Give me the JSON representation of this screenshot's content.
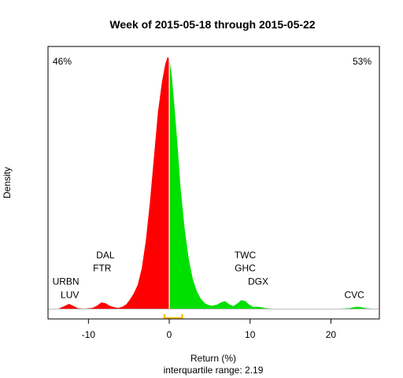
{
  "chart_data": {
    "type": "area",
    "title": "Week of 2015-05-18 through 2015-05-22",
    "xlabel": "Return (%)",
    "ylabel": "Density",
    "subtitle": "interquartile range: 2.19",
    "xlim": [
      -15,
      26
    ],
    "ylim": [
      0,
      1
    ],
    "x_ticks": [
      -10,
      0,
      10,
      20
    ],
    "grid": false,
    "negative_share": "46%",
    "positive_share": "53%",
    "negative_color": "#ff0000",
    "positive_color": "#00e000",
    "iqr_bracket": [
      -0.6,
      1.6
    ],
    "iqr_color": "#ffc000",
    "series": [
      {
        "x": [
          -13.7,
          -13.0,
          -12.4,
          -11.8,
          -11.3,
          -10.5,
          -9.5,
          -8.9,
          -8.4,
          -7.9,
          -7.4,
          -6.8,
          -6.3,
          -5.8,
          -5.3,
          -4.9,
          -4.4,
          -3.9,
          -3.4,
          -2.9,
          -2.4,
          -1.9,
          -1.4,
          -0.9,
          -0.5,
          -0.2,
          0.0,
          0.3,
          0.6,
          1.0,
          1.4,
          1.9,
          2.4,
          2.9,
          3.4,
          3.9,
          4.4,
          4.9,
          5.4,
          5.9,
          6.4,
          6.9,
          7.4,
          7.9,
          8.4,
          8.9,
          9.4,
          9.9,
          10.4,
          10.9,
          11.4,
          11.9,
          13.0,
          15.0,
          18.0,
          21.0,
          22.3,
          22.8,
          23.3,
          23.8,
          24.3,
          25.2
        ],
        "y": [
          0.0,
          0.01,
          0.019,
          0.01,
          0.002,
          0.0,
          0.003,
          0.013,
          0.025,
          0.022,
          0.012,
          0.006,
          0.003,
          0.008,
          0.018,
          0.035,
          0.06,
          0.095,
          0.16,
          0.27,
          0.42,
          0.6,
          0.78,
          0.9,
          0.97,
          1.0,
          0.99,
          0.93,
          0.82,
          0.66,
          0.48,
          0.32,
          0.2,
          0.12,
          0.07,
          0.04,
          0.022,
          0.014,
          0.012,
          0.016,
          0.025,
          0.03,
          0.018,
          0.01,
          0.02,
          0.034,
          0.03,
          0.016,
          0.007,
          0.008,
          0.006,
          0.002,
          0.0,
          0.0,
          0.0,
          0.0,
          0.002,
          0.006,
          0.008,
          0.006,
          0.002,
          0.0
        ]
      }
    ],
    "annotations": [
      {
        "text": "URBN",
        "x": -12.8,
        "y": 0.095
      },
      {
        "text": "LUV",
        "x": -12.3,
        "y": 0.042
      },
      {
        "text": "DAL",
        "x": -7.9,
        "y": 0.2
      },
      {
        "text": "FTR",
        "x": -8.3,
        "y": 0.148
      },
      {
        "text": "TWC",
        "x": 9.4,
        "y": 0.2
      },
      {
        "text": "GHC",
        "x": 9.4,
        "y": 0.148
      },
      {
        "text": "DGX",
        "x": 11.0,
        "y": 0.095
      },
      {
        "text": "CVC",
        "x": 22.9,
        "y": 0.042
      }
    ]
  }
}
